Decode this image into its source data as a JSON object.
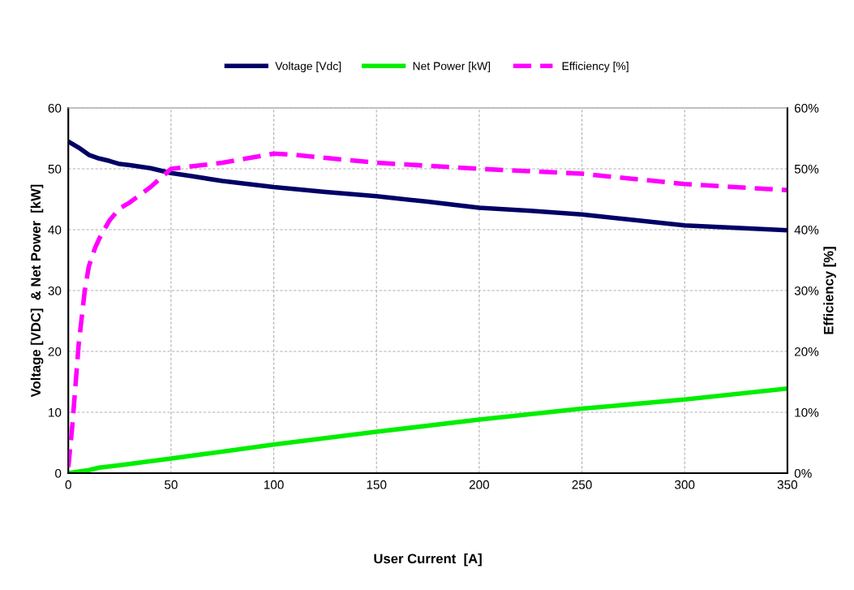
{
  "chart_data": {
    "type": "line",
    "xlabel": "User Current  [A]",
    "ylabel": "Voltage [VDC]  & Net Power  [kW]",
    "y2label": "Efficiency [%]",
    "xlim": [
      0,
      350
    ],
    "xticks": [
      0,
      50,
      100,
      150,
      200,
      250,
      300,
      350
    ],
    "ylim": [
      0,
      60
    ],
    "yticks": [
      0,
      10,
      20,
      30,
      40,
      50,
      60
    ],
    "y2lim": [
      0,
      60
    ],
    "y2ticks": [
      {
        "value": 0,
        "label": "0%"
      },
      {
        "value": 10,
        "label": "10%"
      },
      {
        "value": 20,
        "label": "20%"
      },
      {
        "value": 30,
        "label": "30%"
      },
      {
        "value": 40,
        "label": "40%"
      },
      {
        "value": 50,
        "label": "50%"
      },
      {
        "value": 60,
        "label": "60%"
      }
    ],
    "grid": true,
    "legend": "top",
    "marker": "none",
    "series": [
      {
        "name": "Voltage [Vdc]",
        "color": "#000066",
        "line_style": "solid",
        "x": [
          0,
          5,
          10,
          15,
          20,
          25,
          30,
          40,
          50,
          60,
          75,
          90,
          100,
          125,
          150,
          175,
          200,
          225,
          250,
          275,
          300,
          325,
          350
        ],
        "values": [
          54.5,
          53.5,
          52.3,
          51.7,
          51.3,
          50.8,
          50.6,
          50.1,
          49.3,
          48.8,
          48.0,
          47.4,
          47.0,
          46.2,
          45.5,
          44.6,
          43.6,
          43.1,
          42.5,
          41.6,
          40.7,
          40.3,
          39.9
        ]
      },
      {
        "name": "Net Power [kW]",
        "color": "#00ee00",
        "line_style": "solid",
        "x": [
          0,
          10,
          15,
          25,
          50,
          100,
          150,
          200,
          250,
          300,
          350
        ],
        "values": [
          0,
          0.5,
          0.9,
          1.3,
          2.4,
          4.7,
          6.8,
          8.8,
          10.6,
          12.1,
          13.9
        ]
      },
      {
        "name": "Efficiency [%]",
        "color": "#ff00ff",
        "line_style": "dashed",
        "axis": "y2",
        "x": [
          0,
          2,
          5,
          8,
          10,
          13,
          15,
          20,
          25,
          30,
          40,
          50,
          75,
          100,
          110,
          125,
          150,
          200,
          250,
          300,
          350
        ],
        "values": [
          1,
          8,
          21,
          30,
          34,
          37,
          38.5,
          41.5,
          43.5,
          44.5,
          47,
          50,
          51,
          52.5,
          52.3,
          51.8,
          51,
          50,
          49.2,
          47.5,
          46.5
        ]
      }
    ]
  }
}
